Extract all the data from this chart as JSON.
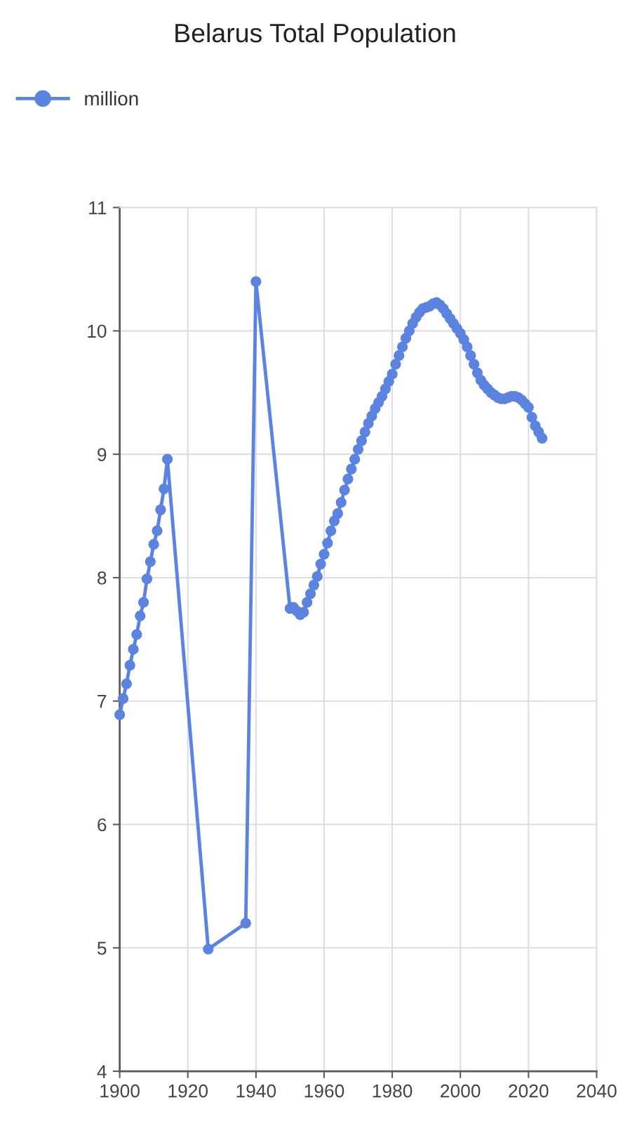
{
  "chart_data": {
    "type": "line",
    "title": "Belarus Total Population",
    "x": [
      1900,
      1901,
      1902,
      1903,
      1904,
      1905,
      1906,
      1907,
      1908,
      1909,
      1910,
      1911,
      1912,
      1913,
      1914,
      1926,
      1937,
      1940,
      1950,
      1951,
      1952,
      1953,
      1954,
      1955,
      1956,
      1957,
      1958,
      1959,
      1960,
      1961,
      1962,
      1963,
      1964,
      1965,
      1966,
      1967,
      1968,
      1969,
      1970,
      1971,
      1972,
      1973,
      1974,
      1975,
      1976,
      1977,
      1978,
      1979,
      1980,
      1981,
      1982,
      1983,
      1984,
      1985,
      1986,
      1987,
      1988,
      1989,
      1990,
      1991,
      1992,
      1993,
      1994,
      1995,
      1996,
      1997,
      1998,
      1999,
      2000,
      2001,
      2002,
      2003,
      2004,
      2005,
      2006,
      2007,
      2008,
      2009,
      2010,
      2011,
      2012,
      2013,
      2014,
      2015,
      2016,
      2017,
      2018,
      2019,
      2020,
      2021,
      2022,
      2023,
      2024
    ],
    "series": [
      {
        "name": "million",
        "color": "#5b83e0",
        "values": [
          6.89,
          7.02,
          7.14,
          7.29,
          7.42,
          7.54,
          7.69,
          7.8,
          7.99,
          8.13,
          8.27,
          8.38,
          8.55,
          8.72,
          8.96,
          4.99,
          5.2,
          10.4,
          7.75,
          7.76,
          7.73,
          7.7,
          7.72,
          7.8,
          7.87,
          7.94,
          8.01,
          8.11,
          8.19,
          8.28,
          8.38,
          8.46,
          8.52,
          8.61,
          8.71,
          8.8,
          8.88,
          8.96,
          9.04,
          9.11,
          9.18,
          9.25,
          9.31,
          9.37,
          9.42,
          9.47,
          9.53,
          9.59,
          9.65,
          9.73,
          9.8,
          9.87,
          9.94,
          10.0,
          10.06,
          10.11,
          10.15,
          10.18,
          10.19,
          10.2,
          10.22,
          10.23,
          10.21,
          10.18,
          10.14,
          10.1,
          10.06,
          10.02,
          9.98,
          9.93,
          9.87,
          9.8,
          9.73,
          9.66,
          9.6,
          9.56,
          9.53,
          9.5,
          9.48,
          9.46,
          9.45,
          9.45,
          9.46,
          9.47,
          9.47,
          9.46,
          9.44,
          9.41,
          9.38,
          9.3,
          9.23,
          9.18,
          9.13
        ]
      }
    ],
    "xlim": [
      1900,
      2040
    ],
    "xticks": [
      1900,
      1920,
      1940,
      1960,
      1980,
      2000,
      2020,
      2040
    ],
    "ylim": [
      4,
      11
    ],
    "yticks": [
      4,
      5,
      6,
      7,
      8,
      9,
      10,
      11
    ],
    "grid": true,
    "legend": "top left",
    "marker": "circle",
    "line_style": "solid"
  }
}
